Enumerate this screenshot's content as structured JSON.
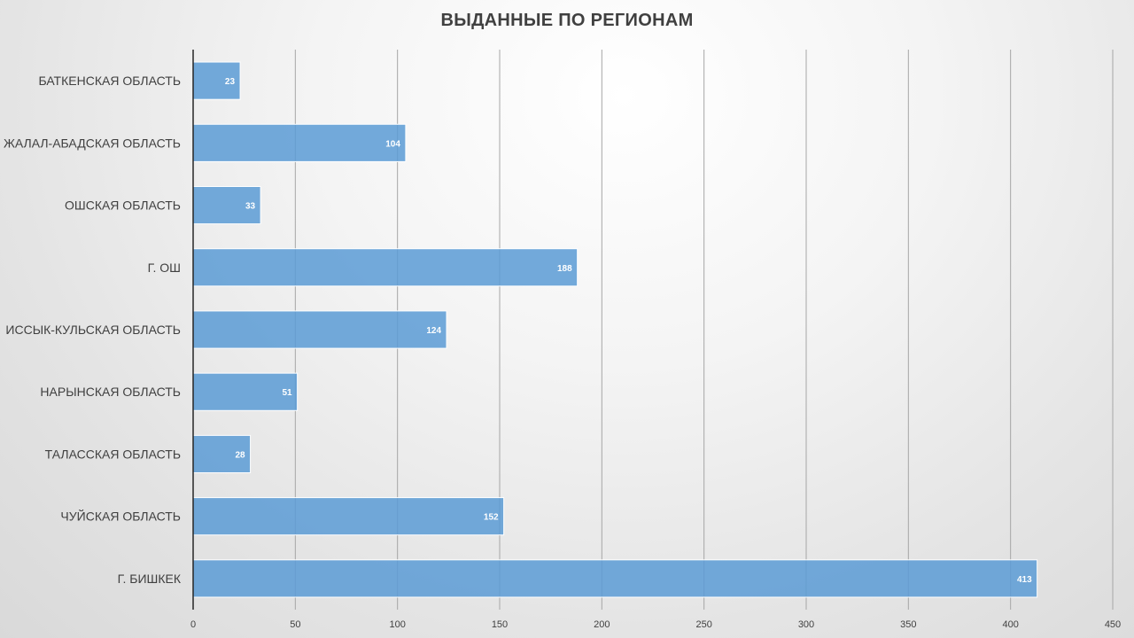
{
  "chart_data": {
    "type": "bar",
    "orientation": "horizontal",
    "title": "ВЫДАННЫЕ ПО РЕГИОНАМ",
    "categories": [
      "БАТКЕНСКАЯ ОБЛАСТЬ",
      "ЖАЛАЛ-АБАДСКАЯ ОБЛАСТЬ",
      "ОШСКАЯ ОБЛАСТЬ",
      "Г. ОШ",
      "ИССЫК-КУЛЬСКАЯ ОБЛАСТЬ",
      "НАРЫНСКАЯ ОБЛАСТЬ",
      "ТАЛАССКАЯ ОБЛАСТЬ",
      "ЧУЙСКАЯ ОБЛАСТЬ",
      "Г. БИШКЕК"
    ],
    "values": [
      23,
      104,
      33,
      188,
      124,
      51,
      28,
      152,
      413
    ],
    "xlim": [
      0,
      450
    ],
    "xticks": [
      0,
      50,
      100,
      150,
      200,
      250,
      300,
      350,
      400,
      450
    ],
    "xlabel": "",
    "ylabel": "",
    "grid": "vertical",
    "data_labels": true,
    "legend": "none",
    "bar_color": "#5b9bd5"
  }
}
